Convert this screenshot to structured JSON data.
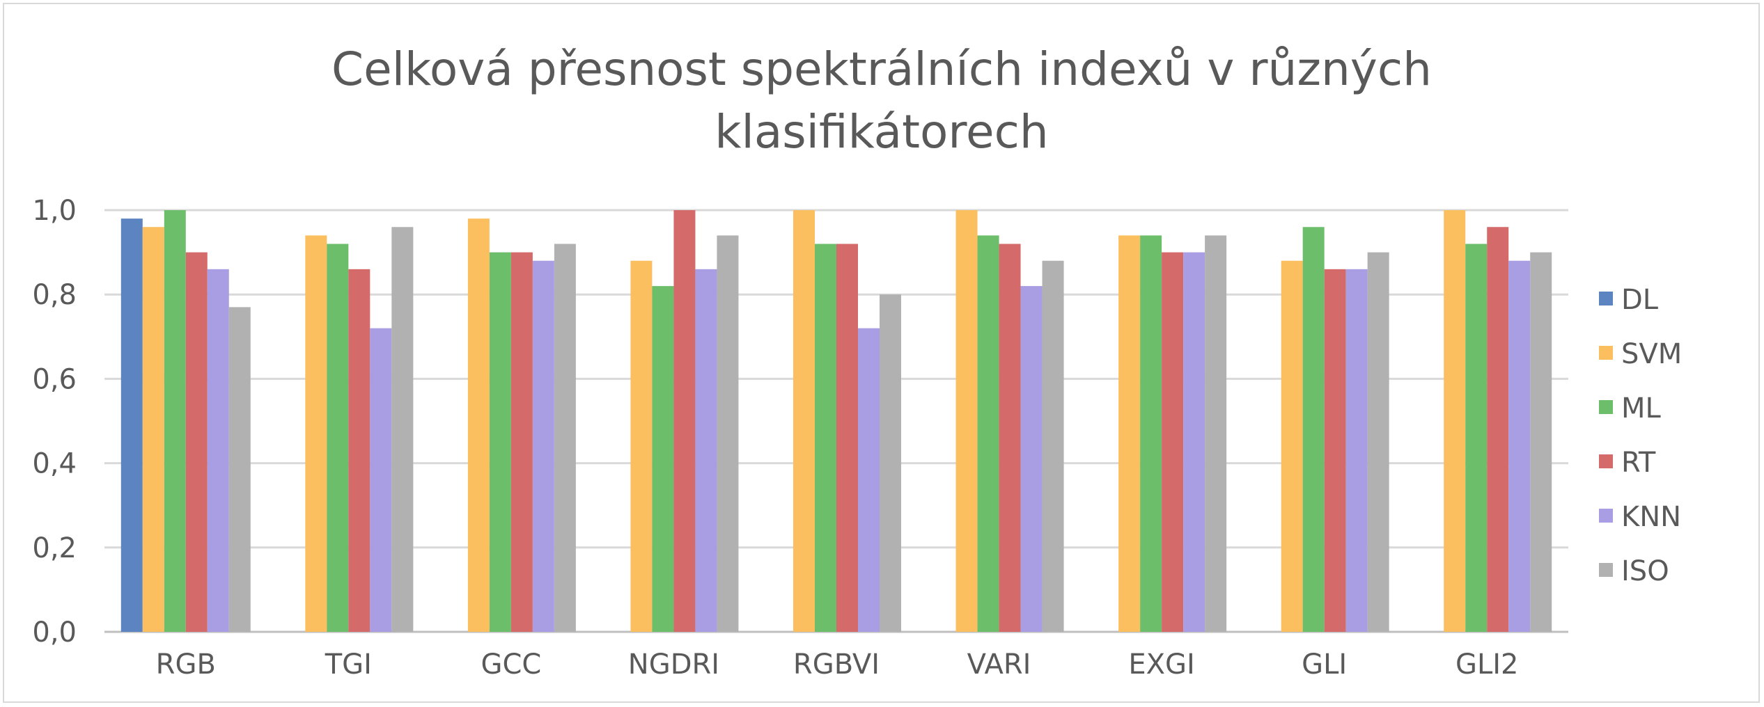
{
  "chart_data": {
    "type": "bar",
    "title": "Celková přesnost spektrálních indexů v různých klasifikátorech",
    "title_lines": [
      "Celková přesnost spektrálních indexů v různých",
      "klasifikátorech"
    ],
    "categories": [
      "RGB",
      "TGI",
      "GCC",
      "NGDRI",
      "RGBVI",
      "VARI",
      "EXGI",
      "GLI",
      "GLI2"
    ],
    "ylim": [
      0,
      1.0
    ],
    "yticks": [
      "0,0",
      "0,2",
      "0,4",
      "0,6",
      "0,8",
      "1,0"
    ],
    "ytick_values": [
      0,
      0.2,
      0.4,
      0.6,
      0.8,
      1.0
    ],
    "grid": true,
    "legend_position": "right",
    "series": [
      {
        "name": "DL",
        "color": "#5b84c0",
        "values": [
          0.98,
          null,
          null,
          null,
          null,
          null,
          null,
          null,
          null
        ]
      },
      {
        "name": "SVM",
        "color": "#fcbf5f",
        "values": [
          0.96,
          0.94,
          0.98,
          0.88,
          1.0,
          1.0,
          0.94,
          0.88,
          1.0
        ]
      },
      {
        "name": "ML",
        "color": "#6cbe6a",
        "values": [
          1.0,
          0.92,
          0.9,
          0.82,
          0.92,
          0.94,
          0.94,
          0.96,
          0.92
        ]
      },
      {
        "name": "RT",
        "color": "#d46a6a",
        "values": [
          0.9,
          0.86,
          0.9,
          1.0,
          0.92,
          0.92,
          0.9,
          0.86,
          0.96
        ]
      },
      {
        "name": "KNN",
        "color": "#a99ee3",
        "values": [
          0.86,
          0.72,
          0.88,
          0.86,
          0.72,
          0.82,
          0.9,
          0.86,
          0.88
        ]
      },
      {
        "name": "ISO",
        "color": "#b1b1b1",
        "values": [
          0.77,
          0.96,
          0.92,
          0.94,
          0.8,
          0.88,
          0.94,
          0.9,
          0.9
        ]
      }
    ]
  }
}
